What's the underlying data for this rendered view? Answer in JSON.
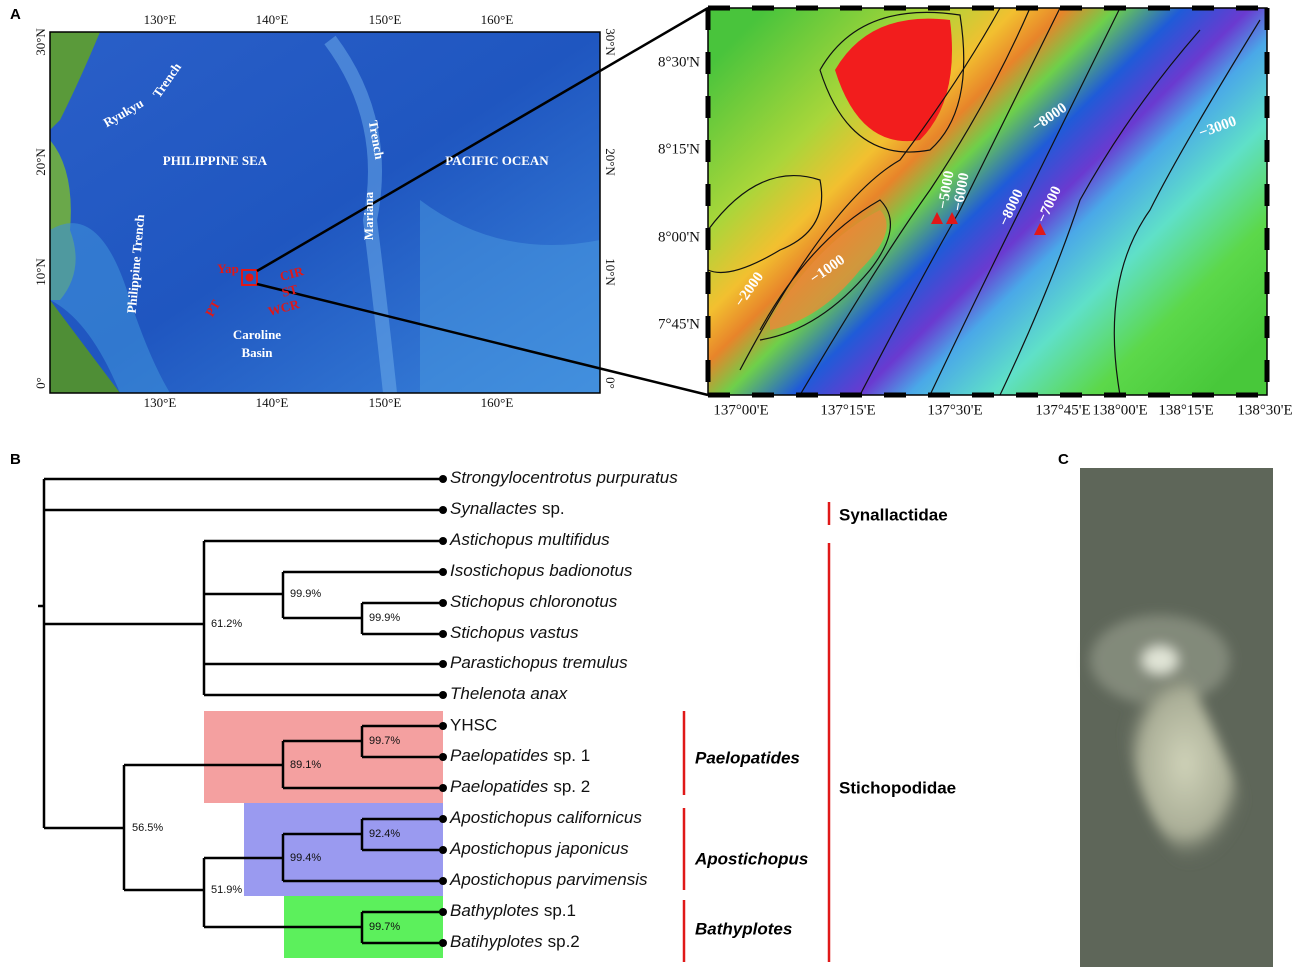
{
  "panels": {
    "a": "A",
    "b": "B",
    "c": "C"
  },
  "map_a": {
    "lon_labels": [
      "130°E",
      "140°E",
      "150°E",
      "160°E"
    ],
    "lat_labels": [
      "30°N",
      "20°N",
      "10°N",
      "0°"
    ],
    "places": [
      "Ryukyu",
      "Trench",
      "PHILIPPINE SEA",
      "PACIFIC OCEAN",
      "Mariana",
      "Trench",
      "Philippine Trench",
      "Yap",
      "CIR",
      "ST",
      "WCR",
      "PT",
      "Caroline",
      "Basin"
    ]
  },
  "map_b": {
    "lon_labels": [
      "137°00'E",
      "137°15'E",
      "137°30'E",
      "137°45'E",
      "138°00'E",
      "138°15'E",
      "138°30'E"
    ],
    "lat_labels": [
      "8°30'N",
      "8°15'N",
      "8°00'N",
      "7°45'N"
    ],
    "contour_labels": [
      "−8000",
      "−3000",
      "−5000",
      "−6000",
      "−8000",
      "−7000",
      "−1000",
      "−2000"
    ]
  },
  "tree": {
    "taxa": [
      {
        "italic": "Strongylocentrotus purpuratus"
      },
      {
        "italic": "Synallactes",
        "plain": "sp."
      },
      {
        "italic": "Astichopus multifidus"
      },
      {
        "italic": "Isostichopus badionotus"
      },
      {
        "italic": "Stichopus chloronotus"
      },
      {
        "italic": "Stichopus vastus"
      },
      {
        "italic": "Parastichopus tremulus"
      },
      {
        "italic": "Thelenota anax"
      },
      {
        "highlight": "YHSC"
      },
      {
        "italic": "Paelopatides",
        "plain": "sp. 1"
      },
      {
        "italic": "Paelopatides",
        "plain": "sp. 2"
      },
      {
        "italic": "Apostichopus californicus"
      },
      {
        "italic": "Apostichopus japonicus"
      },
      {
        "italic": "Apostichopus parvimensis"
      },
      {
        "italic": "Bathyplotes",
        "plain": "sp.1"
      },
      {
        "italic": "Batihyplotes",
        "plain": "sp.2"
      }
    ],
    "support": [
      "99.9%",
      "99.9%",
      "61.2%",
      "99.7%",
      "89.1%",
      "56.5%",
      "92.4%",
      "99.4%",
      "51.9%",
      "99.7%"
    ],
    "genera": [
      "Paelopatides",
      "Apostichopus",
      "Bathyplotes"
    ],
    "families": [
      "Synallactidae",
      "Stichopodidae"
    ]
  }
}
